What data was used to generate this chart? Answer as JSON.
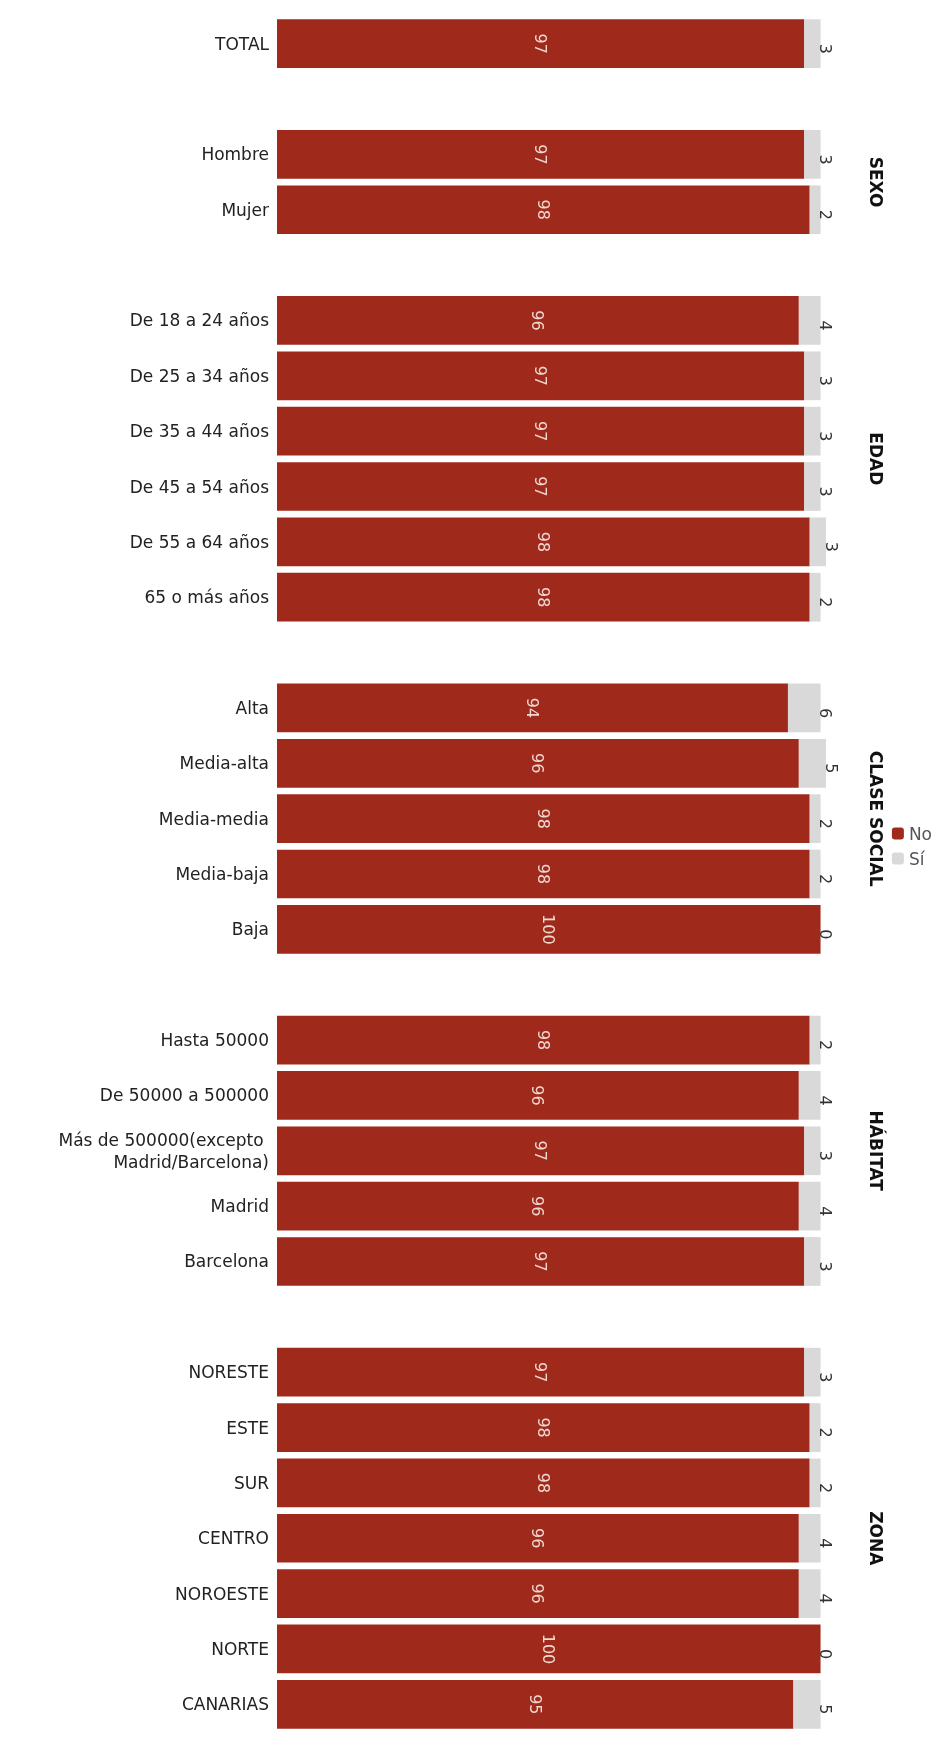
{
  "chart_data": {
    "type": "bar",
    "orientation": "horizontal",
    "stacked": true,
    "data_labels": true,
    "legend": "right",
    "tick_labels": "y",
    "categories": [
      "TOTAL",
      null,
      "Hombre",
      "Mujer",
      null,
      "De 18 a 24 años",
      "De 25 a 34 años",
      "De 35 a 44 años",
      "De 45 a 54 años",
      "De 55 a 64 años",
      "65 o más años",
      null,
      "Alta",
      "Media-alta",
      "Media-media",
      "Media-baja",
      "Baja",
      null,
      "Hasta 50000",
      "De 50000 a 500000",
      "Más de 500000(excepto Madrid/Barcelona)",
      "Madrid",
      "Barcelona",
      null,
      "NORESTE",
      "ESTE",
      "SUR",
      "CENTRO",
      "NOROESTE",
      "NORTE",
      "CANARIAS"
    ],
    "series": [
      {
        "name": "No",
        "color": "#9f2a1b",
        "values": [
          97,
          null,
          97,
          98,
          null,
          96,
          97,
          97,
          97,
          98,
          98,
          null,
          94,
          96,
          98,
          98,
          100,
          null,
          98,
          96,
          97,
          96,
          97,
          null,
          97,
          98,
          98,
          96,
          96,
          100,
          95
        ]
      },
      {
        "name": "Sí",
        "color": "#d9d9d9",
        "values": [
          3,
          null,
          3,
          2,
          null,
          4,
          3,
          3,
          3,
          3,
          2,
          null,
          6,
          5,
          2,
          2,
          0,
          null,
          2,
          4,
          3,
          4,
          3,
          null,
          3,
          2,
          2,
          4,
          4,
          0,
          5
        ]
      }
    ],
    "annotations": [
      "SEXO",
      "EDAD",
      "CLASE SOCIAL",
      "HÁBITAT",
      "ZONA"
    ]
  }
}
